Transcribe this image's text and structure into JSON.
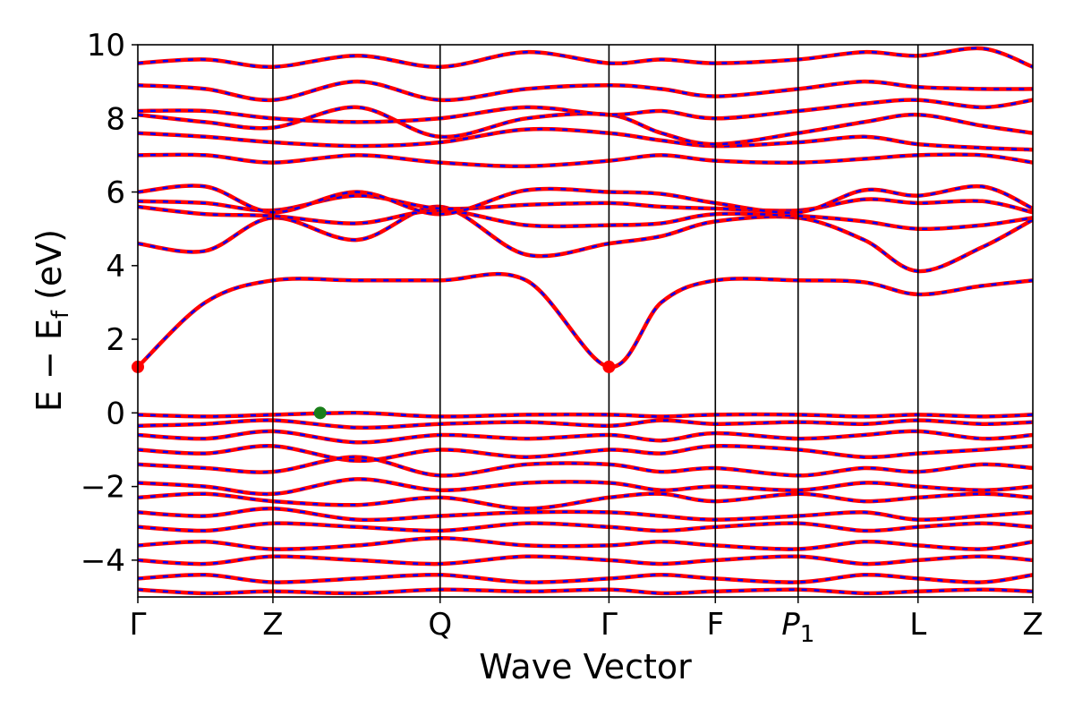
{
  "chart_data": {
    "type": "line",
    "title": "",
    "xlabel": "Wave Vector",
    "ylabel_main": "E − E",
    "ylabel_sub": "f",
    "ylabel_unit": " (eV)",
    "ylim": [
      -5,
      10
    ],
    "y_ticks": [
      -4,
      -2,
      0,
      2,
      4,
      6,
      8,
      10
    ],
    "y_tick_labels": [
      "−4",
      "−2",
      "0",
      "2",
      "4",
      "6",
      "8",
      "10"
    ],
    "grid": false,
    "x_range": [
      0,
      5.3
    ],
    "high_symmetry_points": [
      {
        "label": "Γ",
        "x": 0.0
      },
      {
        "label": "Z",
        "x": 0.8
      },
      {
        "label": "Q",
        "x": 1.79
      },
      {
        "label": "Γ",
        "x": 2.79
      },
      {
        "label": "F",
        "x": 3.42
      },
      {
        "label": "P",
        "sub": "1",
        "italic": true,
        "x": 3.91
      },
      {
        "label": "L",
        "x": 4.62
      },
      {
        "label": "Z",
        "x": 5.3
      }
    ],
    "line_colors": {
      "spin_up": "#ff0000",
      "spin_down": "#0000ff"
    },
    "markers": [
      {
        "name": "CBM",
        "x": 0.0,
        "y": 1.25,
        "color": "#ff0000"
      },
      {
        "name": "CBM",
        "x": 2.79,
        "y": 1.25,
        "color": "#ff0000"
      },
      {
        "name": "VBM",
        "x": 1.08,
        "y": 0.0,
        "color": "#1a7f1a"
      }
    ],
    "series": [
      {
        "x": [
          0,
          0.4,
          0.8,
          1.3,
          1.79,
          2.3,
          2.79,
          3.1,
          3.42,
          3.91,
          4.3,
          4.62,
          5.0,
          5.3
        ],
        "y": [
          1.25,
          3.0,
          3.6,
          3.6,
          3.6,
          3.6,
          1.25,
          3.0,
          3.6,
          3.6,
          3.55,
          3.22,
          3.45,
          3.6
        ]
      },
      {
        "x": [
          0,
          0.4,
          0.8,
          1.3,
          1.79,
          2.3,
          2.79,
          3.1,
          3.42,
          3.91,
          4.3,
          4.62,
          5.0,
          5.3
        ],
        "y": [
          4.6,
          4.4,
          5.3,
          4.7,
          5.6,
          4.3,
          4.6,
          4.8,
          5.2,
          5.3,
          4.7,
          3.85,
          4.5,
          5.25
        ]
      },
      {
        "x": [
          0,
          0.4,
          0.8,
          1.3,
          1.79,
          2.3,
          2.79,
          3.1,
          3.42,
          3.91,
          4.3,
          4.62,
          5.0,
          5.3
        ],
        "y": [
          5.6,
          5.4,
          5.35,
          5.15,
          5.5,
          5.1,
          5.1,
          5.15,
          5.4,
          5.35,
          5.2,
          5.0,
          5.1,
          5.3
        ]
      },
      {
        "x": [
          0,
          0.4,
          0.8,
          1.3,
          1.79,
          2.3,
          2.79,
          3.1,
          3.42,
          3.91,
          4.3,
          4.62,
          5.0,
          5.3
        ],
        "y": [
          5.75,
          5.7,
          5.5,
          5.9,
          5.55,
          5.65,
          5.7,
          5.6,
          5.55,
          5.5,
          5.8,
          5.7,
          5.75,
          5.45
        ]
      },
      {
        "x": [
          0,
          0.4,
          0.8,
          1.3,
          1.79,
          2.3,
          2.79,
          3.1,
          3.42,
          3.91,
          4.3,
          4.62,
          5.0,
          5.3
        ],
        "y": [
          6.0,
          6.15,
          5.45,
          6.0,
          5.4,
          6.05,
          6.0,
          5.95,
          5.7,
          5.45,
          6.05,
          5.9,
          6.15,
          5.55
        ]
      },
      {
        "x": [
          0,
          0.4,
          0.8,
          1.3,
          1.79,
          2.3,
          2.79,
          3.1,
          3.42,
          3.91,
          4.3,
          4.62,
          5.0,
          5.3
        ],
        "y": [
          7.0,
          7.0,
          6.8,
          7.0,
          6.8,
          6.7,
          6.85,
          7.0,
          6.85,
          6.8,
          6.9,
          7.0,
          7.0,
          6.8
        ]
      },
      {
        "x": [
          0,
          0.4,
          0.8,
          1.3,
          1.79,
          2.3,
          2.79,
          3.1,
          3.42,
          3.91,
          4.3,
          4.62,
          5.0,
          5.3
        ],
        "y": [
          7.6,
          7.5,
          7.35,
          7.25,
          7.35,
          7.7,
          7.6,
          7.4,
          7.25,
          7.35,
          7.5,
          7.3,
          7.2,
          7.15
        ]
      },
      {
        "x": [
          0,
          0.4,
          0.8,
          1.3,
          1.79,
          2.3,
          2.79,
          3.1,
          3.42,
          3.91,
          4.3,
          4.62,
          5.0,
          5.3
        ],
        "y": [
          8.1,
          7.9,
          7.75,
          8.3,
          7.5,
          8.0,
          8.1,
          7.6,
          7.3,
          7.6,
          7.9,
          8.1,
          7.8,
          7.6
        ]
      },
      {
        "x": [
          0,
          0.4,
          0.8,
          1.3,
          1.79,
          2.3,
          2.79,
          3.1,
          3.42,
          3.91,
          4.3,
          4.62,
          5.0,
          5.3
        ],
        "y": [
          8.2,
          8.2,
          8.0,
          7.9,
          8.0,
          8.3,
          8.1,
          8.2,
          8.0,
          8.2,
          8.4,
          8.5,
          8.3,
          8.5
        ]
      },
      {
        "x": [
          0,
          0.4,
          0.8,
          1.3,
          1.79,
          2.3,
          2.79,
          3.1,
          3.42,
          3.91,
          4.3,
          4.62,
          5.0,
          5.3
        ],
        "y": [
          8.9,
          8.8,
          8.5,
          9.0,
          8.5,
          8.8,
          8.9,
          8.8,
          8.6,
          8.8,
          9.0,
          8.85,
          8.8,
          8.8
        ]
      },
      {
        "x": [
          0,
          0.4,
          0.8,
          1.3,
          1.79,
          2.3,
          2.79,
          3.1,
          3.42,
          3.91,
          4.3,
          4.62,
          5.0,
          5.3
        ],
        "y": [
          9.5,
          9.6,
          9.4,
          9.7,
          9.4,
          9.8,
          9.5,
          9.6,
          9.5,
          9.6,
          9.8,
          9.7,
          9.9,
          9.4
        ]
      },
      {
        "x": [
          0,
          0.4,
          0.8,
          1.3,
          1.79,
          2.3,
          2.79,
          3.1,
          3.42,
          3.91,
          4.3,
          4.62,
          5.0,
          5.3
        ],
        "y": [
          -0.05,
          -0.1,
          -0.05,
          0.0,
          -0.1,
          -0.05,
          -0.05,
          -0.1,
          -0.05,
          -0.05,
          -0.1,
          -0.05,
          -0.1,
          -0.05
        ]
      },
      {
        "x": [
          0,
          0.4,
          0.8,
          1.3,
          1.79,
          2.3,
          2.79,
          3.1,
          3.42,
          3.91,
          4.3,
          4.62,
          5.0,
          5.3
        ],
        "y": [
          -0.35,
          -0.3,
          -0.2,
          -0.4,
          -0.3,
          -0.25,
          -0.35,
          -0.2,
          -0.3,
          -0.25,
          -0.3,
          -0.2,
          -0.3,
          -0.25
        ]
      },
      {
        "x": [
          0,
          0.4,
          0.8,
          1.3,
          1.79,
          2.3,
          2.79,
          3.1,
          3.42,
          3.91,
          4.3,
          4.62,
          5.0,
          5.3
        ],
        "y": [
          -0.6,
          -0.7,
          -0.5,
          -0.8,
          -0.6,
          -0.7,
          -0.6,
          -0.75,
          -0.55,
          -0.7,
          -0.6,
          -0.5,
          -0.7,
          -0.6
        ]
      },
      {
        "x": [
          0,
          0.4,
          0.8,
          1.3,
          1.79,
          2.3,
          2.79,
          3.1,
          3.42,
          3.91,
          4.3,
          4.62,
          5.0,
          5.3
        ],
        "y": [
          -1.0,
          -1.1,
          -0.9,
          -1.3,
          -1.0,
          -1.2,
          -1.0,
          -1.1,
          -0.9,
          -1.0,
          -1.2,
          -1.1,
          -1.0,
          -0.9
        ]
      },
      {
        "x": [
          0,
          0.4,
          0.8,
          1.3,
          1.79,
          2.3,
          2.79,
          3.1,
          3.42,
          3.91,
          4.3,
          4.62,
          5.0,
          5.3
        ],
        "y": [
          -1.4,
          -1.5,
          -1.6,
          -1.2,
          -1.7,
          -1.4,
          -1.4,
          -1.6,
          -1.5,
          -1.7,
          -1.5,
          -1.6,
          -1.4,
          -1.5
        ]
      },
      {
        "x": [
          0,
          0.4,
          0.8,
          1.3,
          1.79,
          2.3,
          2.79,
          3.1,
          3.42,
          3.91,
          4.3,
          4.62,
          5.0,
          5.3
        ],
        "y": [
          -1.9,
          -2.0,
          -2.2,
          -1.8,
          -2.1,
          -1.9,
          -1.9,
          -2.1,
          -2.0,
          -2.1,
          -1.9,
          -2.0,
          -2.1,
          -2.0
        ]
      },
      {
        "x": [
          0,
          0.4,
          0.8,
          1.3,
          1.79,
          2.3,
          2.79,
          3.1,
          3.42,
          3.91,
          4.3,
          4.62,
          5.0,
          5.3
        ],
        "y": [
          -2.3,
          -2.2,
          -2.4,
          -2.5,
          -2.3,
          -2.6,
          -2.3,
          -2.2,
          -2.4,
          -2.2,
          -2.4,
          -2.3,
          -2.2,
          -2.3
        ]
      },
      {
        "x": [
          0,
          0.4,
          0.8,
          1.3,
          1.79,
          2.3,
          2.79,
          3.1,
          3.42,
          3.91,
          4.3,
          4.62,
          5.0,
          5.3
        ],
        "y": [
          -2.7,
          -2.8,
          -2.6,
          -2.9,
          -2.8,
          -2.7,
          -2.7,
          -2.8,
          -2.9,
          -2.8,
          -2.7,
          -2.9,
          -2.8,
          -2.7
        ]
      },
      {
        "x": [
          0,
          0.4,
          0.8,
          1.3,
          1.79,
          2.3,
          2.79,
          3.1,
          3.42,
          3.91,
          4.3,
          4.62,
          5.0,
          5.3
        ],
        "y": [
          -3.1,
          -3.2,
          -3.0,
          -3.1,
          -3.2,
          -3.0,
          -3.1,
          -3.2,
          -3.1,
          -3.0,
          -3.2,
          -3.1,
          -3.0,
          -3.1
        ]
      },
      {
        "x": [
          0,
          0.4,
          0.8,
          1.3,
          1.79,
          2.3,
          2.79,
          3.1,
          3.42,
          3.91,
          4.3,
          4.62,
          5.0,
          5.3
        ],
        "y": [
          -3.6,
          -3.5,
          -3.7,
          -3.6,
          -3.4,
          -3.6,
          -3.6,
          -3.5,
          -3.6,
          -3.7,
          -3.5,
          -3.6,
          -3.7,
          -3.5
        ]
      },
      {
        "x": [
          0,
          0.4,
          0.8,
          1.3,
          1.79,
          2.3,
          2.79,
          3.1,
          3.42,
          3.91,
          4.3,
          4.62,
          5.0,
          5.3
        ],
        "y": [
          -4.0,
          -4.1,
          -3.9,
          -4.0,
          -4.1,
          -3.9,
          -4.0,
          -4.1,
          -4.0,
          -3.9,
          -4.1,
          -4.0,
          -3.9,
          -4.0
        ]
      },
      {
        "x": [
          0,
          0.4,
          0.8,
          1.3,
          1.79,
          2.3,
          2.79,
          3.1,
          3.42,
          3.91,
          4.3,
          4.62,
          5.0,
          5.3
        ],
        "y": [
          -4.5,
          -4.4,
          -4.6,
          -4.5,
          -4.4,
          -4.6,
          -4.5,
          -4.4,
          -4.5,
          -4.6,
          -4.4,
          -4.5,
          -4.6,
          -4.4
        ]
      },
      {
        "x": [
          0,
          0.4,
          0.8,
          1.3,
          1.79,
          2.3,
          2.79,
          3.1,
          3.42,
          3.91,
          4.3,
          4.62,
          5.0,
          5.3
        ],
        "y": [
          -4.8,
          -4.9,
          -4.85,
          -4.9,
          -4.8,
          -4.85,
          -4.8,
          -4.9,
          -4.85,
          -4.8,
          -4.9,
          -4.85,
          -4.8,
          -4.85
        ]
      }
    ]
  }
}
